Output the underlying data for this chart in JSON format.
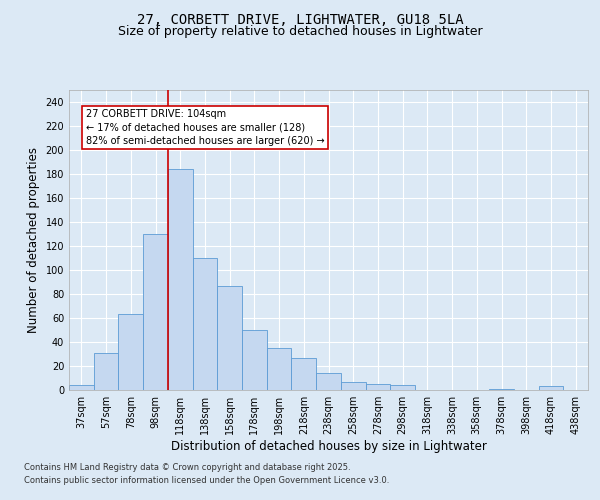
{
  "title": "27, CORBETT DRIVE, LIGHTWATER, GU18 5LA",
  "subtitle": "Size of property relative to detached houses in Lightwater",
  "xlabel": "Distribution of detached houses by size in Lightwater",
  "ylabel": "Number of detached properties",
  "footer_line1": "Contains HM Land Registry data © Crown copyright and database right 2025.",
  "footer_line2": "Contains public sector information licensed under the Open Government Licence v3.0.",
  "bins": [
    "37sqm",
    "57sqm",
    "78sqm",
    "98sqm",
    "118sqm",
    "138sqm",
    "158sqm",
    "178sqm",
    "198sqm",
    "218sqm",
    "238sqm",
    "258sqm",
    "278sqm",
    "298sqm",
    "318sqm",
    "338sqm",
    "358sqm",
    "378sqm",
    "398sqm",
    "418sqm",
    "438sqm"
  ],
  "values": [
    4,
    31,
    63,
    130,
    184,
    110,
    87,
    50,
    35,
    27,
    14,
    7,
    5,
    4,
    0,
    0,
    0,
    1,
    0,
    3,
    0
  ],
  "bar_color": "#c5d8f0",
  "bar_edge_color": "#5b9bd5",
  "vline_x": 3.5,
  "vline_color": "#cc0000",
  "annotation_text": "27 CORBETT DRIVE: 104sqm\n← 17% of detached houses are smaller (128)\n82% of semi-detached houses are larger (620) →",
  "annotation_box_color": "#cc0000",
  "ylim": [
    0,
    250
  ],
  "yticks": [
    0,
    20,
    40,
    60,
    80,
    100,
    120,
    140,
    160,
    180,
    200,
    220,
    240
  ],
  "background_color": "#dce9f5",
  "plot_bg_color": "#dce9f5",
  "grid_color": "#ffffff",
  "title_fontsize": 10,
  "subtitle_fontsize": 9,
  "tick_fontsize": 7,
  "label_fontsize": 8.5,
  "footer_fontsize": 6
}
